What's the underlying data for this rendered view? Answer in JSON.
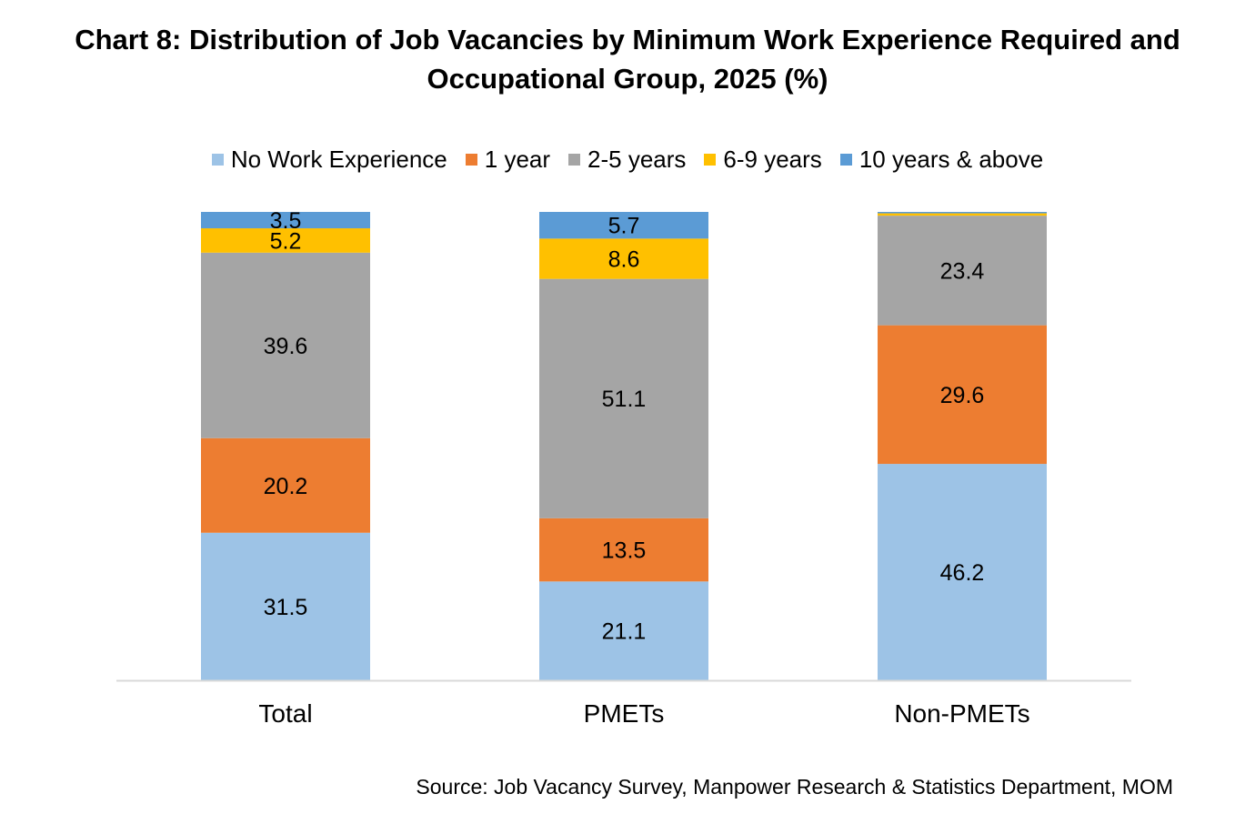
{
  "title_lines": [
    "Chart 8: Distribution of Job Vacancies by Minimum Work Experience Required and",
    "Occupational Group, 2025 (%)"
  ],
  "source": "Source: Job Vacancy Survey, Manpower Research & Statistics Department, MOM",
  "chart_data": {
    "type": "bar",
    "stacked": true,
    "title": "Chart 8: Distribution of Job Vacancies by Minimum Work Experience Required and Occupational Group, 2025 (%)",
    "categories": [
      "Total",
      "PMETs",
      "Non-PMETs"
    ],
    "series": [
      {
        "name": "No Work Experience",
        "color": "#9DC3E6",
        "values": [
          31.5,
          21.1,
          46.2
        ],
        "labels": [
          "31.5",
          "21.1",
          "46.2"
        ]
      },
      {
        "name": "1 year",
        "color": "#ED7D31",
        "values": [
          20.2,
          13.5,
          29.6
        ],
        "labels": [
          "20.2",
          "13.5",
          "29.6"
        ]
      },
      {
        "name": "2-5 years",
        "color": "#A5A5A5",
        "values": [
          39.6,
          51.1,
          23.4
        ],
        "labels": [
          "39.6",
          "51.1",
          "23.4"
        ]
      },
      {
        "name": "6-9 years",
        "color": "#FFC000",
        "values": [
          5.2,
          8.6,
          0.5
        ],
        "labels": [
          "5.2",
          "8.6",
          ""
        ]
      },
      {
        "name": "10 years & above",
        "color": "#5B9BD5",
        "values": [
          3.5,
          5.7,
          0.3
        ],
        "labels": [
          "3.5",
          "5.7",
          ""
        ]
      }
    ],
    "ylim": [
      0,
      100
    ],
    "legend_position": "top",
    "grid": false
  }
}
